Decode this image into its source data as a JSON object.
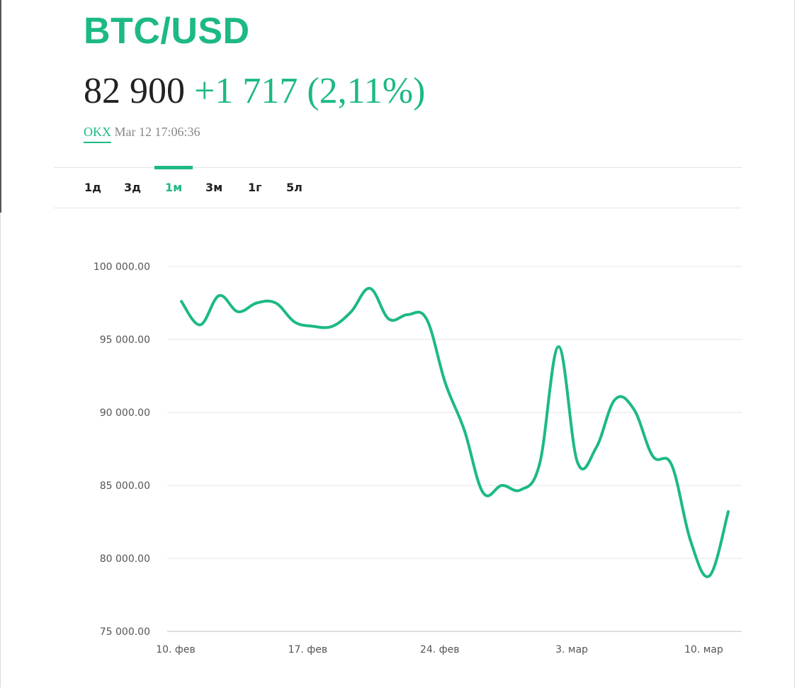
{
  "header": {
    "ticker": "BTC/USD",
    "price": "82 900",
    "change": "+1 717 (2,11%)",
    "exchange": "OKX",
    "timestamp": "Mar 12 17:06:36"
  },
  "tabs": [
    {
      "label": "1д",
      "active": false
    },
    {
      "label": "3д",
      "active": false
    },
    {
      "label": "1м",
      "active": true
    },
    {
      "label": "3м",
      "active": false
    },
    {
      "label": "1г",
      "active": false
    },
    {
      "label": "5л",
      "active": false
    }
  ],
  "colors": {
    "accent": "#1db984",
    "text": "#222222",
    "muted": "#888888",
    "grid": "#e4e4e4"
  },
  "chart_data": {
    "type": "line",
    "title": "",
    "xlabel": "",
    "ylabel": "",
    "x_ticks": [
      "10. фев",
      "17. фев",
      "24. фев",
      "3. мар",
      "10. мар"
    ],
    "y_ticks": [
      "100 000.00",
      "95 000.00",
      "90 000.00",
      "85 000.00",
      "80 000.00",
      "75 000.00"
    ],
    "ylim": [
      75000,
      100000
    ],
    "xlim": [
      "2025-02-10",
      "2025-03-11"
    ],
    "grid": true,
    "series": [
      {
        "color": "#1db984",
        "x": [
          "2025-02-10",
          "2025-02-11",
          "2025-02-12",
          "2025-02-13",
          "2025-02-14",
          "2025-02-15",
          "2025-02-16",
          "2025-02-17",
          "2025-02-18",
          "2025-02-19",
          "2025-02-20",
          "2025-02-21",
          "2025-02-22",
          "2025-02-23",
          "2025-02-24",
          "2025-02-25",
          "2025-02-26",
          "2025-02-27",
          "2025-02-28",
          "2025-03-01",
          "2025-03-02",
          "2025-03-03",
          "2025-03-04",
          "2025-03-05",
          "2025-03-06",
          "2025-03-07",
          "2025-03-08",
          "2025-03-09",
          "2025-03-10",
          "2025-03-11"
        ],
        "values": [
          97600,
          96000,
          98000,
          96900,
          97500,
          97500,
          96200,
          95900,
          95900,
          96900,
          98500,
          96400,
          96700,
          96400,
          92000,
          88800,
          84500,
          85000,
          84700,
          86500,
          94500,
          86600,
          87600,
          90900,
          90200,
          87000,
          86400,
          81200,
          78800,
          83200
        ]
      }
    ]
  }
}
